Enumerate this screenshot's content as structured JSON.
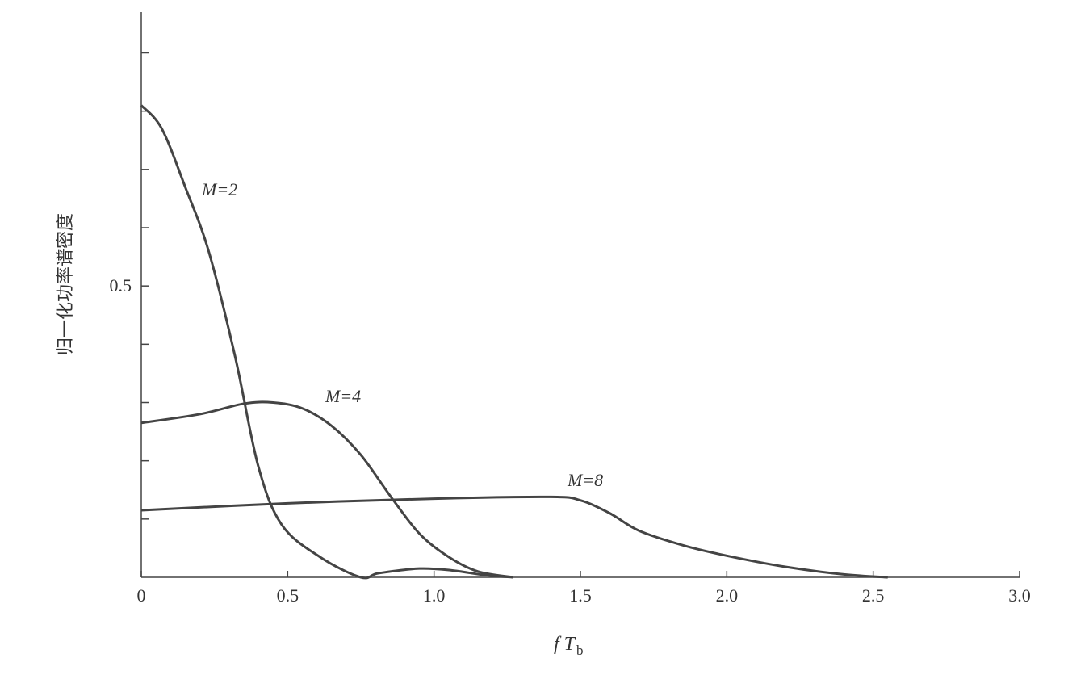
{
  "chart_data": {
    "type": "line",
    "ylabel": "归一化功率谱密度",
    "xlabel": "f T",
    "xlabel_sub": "b",
    "xlim": [
      0,
      3
    ],
    "ylim": [
      0,
      0.97
    ],
    "xticks": [
      0,
      0.5,
      {
        "value": 1,
        "label": "1.0"
      },
      1.5,
      {
        "value": 2,
        "label": "2.0"
      },
      2.5,
      {
        "value": 3,
        "label": "3.0"
      }
    ],
    "yticks": [
      0.5
    ],
    "yminorticks": [
      0.1,
      0.2,
      0.3,
      0.4,
      0.6,
      0.7,
      0.8,
      0.9
    ],
    "grid": false,
    "series": [
      {
        "name": "M=2",
        "color": "#444444",
        "x": [
          0,
          0.07,
          0.15,
          0.23,
          0.32,
          0.4,
          0.48,
          0.61,
          0.75,
          0.81,
          0.95,
          1.06,
          1.17,
          1.27
        ],
        "values": [
          0.81,
          0.77,
          0.67,
          0.56,
          0.38,
          0.19,
          0.09,
          0.035,
          0,
          0.007,
          0.015,
          0.012,
          0.004,
          0
        ]
      },
      {
        "name": "M=4",
        "color": "#444444",
        "x": [
          0,
          0.2,
          0.35,
          0.45,
          0.55,
          0.65,
          0.75,
          0.85,
          0.95,
          1.05,
          1.15,
          1.27
        ],
        "values": [
          0.265,
          0.28,
          0.298,
          0.3,
          0.29,
          0.26,
          0.21,
          0.14,
          0.075,
          0.035,
          0.01,
          0
        ]
      },
      {
        "name": "M=8",
        "color": "#444444",
        "x": [
          0,
          0.5,
          1.0,
          1.4,
          1.5,
          1.6,
          1.7,
          1.85,
          2.0,
          2.2,
          2.4,
          2.55
        ],
        "values": [
          0.115,
          0.127,
          0.135,
          0.138,
          0.132,
          0.11,
          0.08,
          0.055,
          0.037,
          0.018,
          0.005,
          0
        ]
      }
    ]
  }
}
